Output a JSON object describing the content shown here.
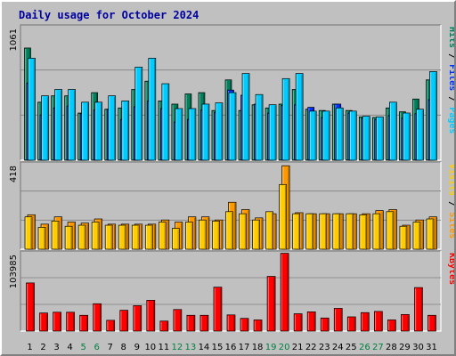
{
  "title": "Daily usage for October 2024",
  "colors": {
    "background": "#c0c0c0",
    "plot_background": "#c0c0c0",
    "visits": "#ff9900",
    "sites": "#ffcc00",
    "pages": "#00ccff",
    "files": "#0033ff",
    "hits": "#00805c",
    "kbytes": "#ff0000",
    "title": "#0000a0",
    "weekend_day_label": "#008040",
    "day_label": "#000000"
  },
  "chart_data": [
    {
      "type": "bar",
      "panel": "hits-files-pages",
      "max_label": "1061",
      "axis_label_parts": [
        "Pages",
        "/",
        "Files",
        "/",
        "Hits"
      ],
      "categories": [
        "1",
        "2",
        "3",
        "4",
        "5",
        "6",
        "7",
        "8",
        "9",
        "10",
        "11",
        "12",
        "13",
        "14",
        "15",
        "16",
        "17",
        "18",
        "19",
        "20",
        "21",
        "22",
        "23",
        "24",
        "25",
        "26",
        "27",
        "28",
        "29",
        "30",
        "31"
      ],
      "weekend_days": [
        "5",
        "6",
        "12",
        "13",
        "19",
        "20",
        "26",
        "27"
      ],
      "ylim": [
        0,
        1061
      ],
      "series": [
        {
          "name": "Hits",
          "values": [
            880,
            455,
            505,
            505,
            370,
            530,
            400,
            410,
            555,
            620,
            465,
            440,
            520,
            530,
            390,
            630,
            390,
            435,
            410,
            440,
            555,
            400,
            390,
            440,
            390,
            340,
            335,
            410,
            380,
            480,
            630
          ]
        },
        {
          "name": "Files",
          "values": [
            605,
            355,
            410,
            425,
            365,
            395,
            400,
            320,
            420,
            465,
            405,
            300,
            320,
            395,
            375,
            550,
            510,
            440,
            370,
            430,
            435,
            415,
            335,
            440,
            370,
            330,
            320,
            350,
            330,
            365,
            475
          ]
        },
        {
          "name": "Pages",
          "values": [
            800,
            505,
            555,
            555,
            455,
            455,
            505,
            465,
            730,
            800,
            600,
            405,
            405,
            440,
            450,
            530,
            680,
            515,
            435,
            640,
            680,
            385,
            385,
            410,
            385,
            345,
            340,
            455,
            370,
            400,
            695
          ]
        }
      ],
      "_order_note": "Series drawn back to front"
    },
    {
      "type": "bar",
      "panel": "sites-visits",
      "max_label": "418",
      "axis_label_parts": [
        "Sites",
        "/",
        "Visits"
      ],
      "categories": [
        "1",
        "2",
        "3",
        "4",
        "5",
        "6",
        "7",
        "8",
        "9",
        "10",
        "11",
        "12",
        "13",
        "14",
        "15",
        "16",
        "17",
        "18",
        "19",
        "20",
        "21",
        "22",
        "23",
        "24",
        "25",
        "26",
        "27",
        "28",
        "29",
        "30",
        "31"
      ],
      "ylim": [
        0,
        418
      ],
      "series": [
        {
          "name": "Visits",
          "values": [
            165,
            120,
            155,
            130,
            125,
            145,
            120,
            120,
            120,
            120,
            140,
            130,
            155,
            155,
            140,
            225,
            190,
            150,
            170,
            400,
            175,
            170,
            170,
            170,
            170,
            170,
            185,
            190,
            115,
            140,
            155
          ]
        },
        {
          "name": "Sites",
          "values": [
            155,
            105,
            135,
            110,
            115,
            130,
            115,
            115,
            115,
            115,
            130,
            100,
            130,
            140,
            135,
            180,
            170,
            140,
            180,
            310,
            170,
            170,
            170,
            170,
            170,
            165,
            170,
            180,
            110,
            130,
            145
          ]
        }
      ]
    },
    {
      "type": "bar",
      "panel": "kbytes",
      "max_label": "103985",
      "axis_label_parts": [
        "KBytes"
      ],
      "categories": [
        "1",
        "2",
        "3",
        "4",
        "5",
        "6",
        "7",
        "8",
        "9",
        "10",
        "11",
        "12",
        "13",
        "14",
        "15",
        "16",
        "17",
        "18",
        "19",
        "20",
        "21",
        "22",
        "23",
        "24",
        "25",
        "26",
        "27",
        "28",
        "29",
        "30",
        "31"
      ],
      "ylim": [
        0,
        103985
      ],
      "series": [
        {
          "name": "KBytes",
          "values": [
            62500,
            23500,
            24500,
            24500,
            20500,
            35500,
            14000,
            27000,
            33000,
            40000,
            13000,
            28000,
            20500,
            20500,
            57000,
            21000,
            16500,
            14500,
            71000,
            101000,
            22500,
            25000,
            17000,
            29500,
            18500,
            24000,
            25500,
            14500,
            21500,
            56500,
            20500
          ]
        }
      ]
    }
  ]
}
